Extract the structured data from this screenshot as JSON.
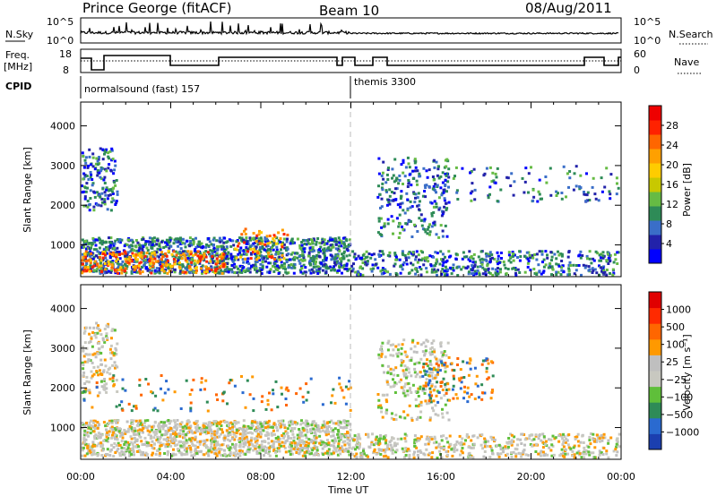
{
  "header": {
    "station": "Prince George (fitACF)",
    "beam": "Beam 10",
    "date": "08/Aug/2011"
  },
  "top_panels": {
    "nsky_label": "N.Sky",
    "nsky_ticks": [
      "10^5",
      "10^0"
    ],
    "nsearch_label": "N.Search",
    "nsearch_ticks": [
      "10^5",
      "10^0"
    ],
    "freq_label_1": "Freq.",
    "freq_label_2": "[MHz]",
    "freq_ticks": [
      "18",
      "8"
    ],
    "nave_label": "Nave",
    "nave_ticks": [
      "60",
      "0"
    ],
    "cpid_label": "CPID",
    "cpid_segments": [
      {
        "name": "normalsound (fast)",
        "id": "157"
      },
      {
        "name": "themis",
        "id": "3300"
      }
    ]
  },
  "chart_data": [
    {
      "type": "heatmap",
      "title": "",
      "xlabel": "Time UT",
      "ylabel": "Slant Range [km]",
      "xticks": [
        "00:00",
        "04:00",
        "08:00",
        "12:00",
        "16:00",
        "20:00",
        "00:00"
      ],
      "yticks": [
        "1000",
        "2000",
        "3000",
        "4000"
      ],
      "ylim": [
        200,
        4600
      ],
      "xlim_hours": [
        0,
        24
      ],
      "colorbar_label": "Power [dB]",
      "colorbar_ticks": [
        "28",
        "24",
        "20",
        "16",
        "12",
        "8",
        "4"
      ],
      "colorbar_colors": [
        "#0000ff",
        "#2222aa",
        "#3a6ec8",
        "#2e8b57",
        "#66bb44",
        "#c8c800",
        "#ffcc00",
        "#ffa000",
        "#ff6600",
        "#ff2200",
        "#ee0000"
      ]
    },
    {
      "type": "heatmap",
      "title": "",
      "xlabel": "Time UT",
      "ylabel": "Slant Range [km]",
      "xticks": [
        "00:00",
        "04:00",
        "08:00",
        "12:00",
        "16:00",
        "20:00",
        "00:00"
      ],
      "yticks": [
        "1000",
        "2000",
        "3000",
        "4000"
      ],
      "ylim": [
        200,
        4600
      ],
      "xlim_hours": [
        0,
        24
      ],
      "colorbar_label": "Velocity [m s⁻¹]",
      "colorbar_ticks": [
        "1000",
        "500",
        "100",
        "25",
        "−25",
        "−100",
        "−500",
        "−1000"
      ],
      "colorbar_colors": [
        "#1b3fb0",
        "#2a6ad0",
        "#2e8b57",
        "#5fbf3a",
        "#c8c8c0",
        "#bfbfbf",
        "#ff9900",
        "#ff6600",
        "#ff2a00",
        "#e00000"
      ]
    }
  ],
  "colors": {
    "gray_ground": "#c0c0bc",
    "divider": "#b0b0b0"
  }
}
